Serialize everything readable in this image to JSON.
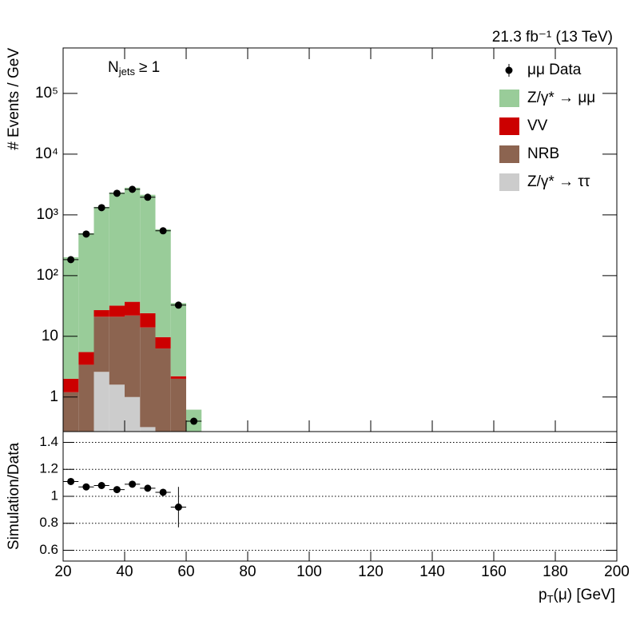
{
  "chart_data": [
    {
      "type": "histogram",
      "log_y": true,
      "lumi": "21.3 fb⁻¹ (13 TeV)",
      "annotation": [
        "N",
        "jets",
        "≥ 1"
      ],
      "ylabel": "# Events / GeV",
      "bins": [
        20,
        25,
        30,
        35,
        40,
        45,
        50,
        55,
        60,
        65
      ],
      "series": [
        {
          "name": "Z/γ* → μμ",
          "color": "#99cc99",
          "values": [
            198,
            494,
            1323,
            2298,
            2763,
            2116,
            570,
            33,
            0.62
          ]
        },
        {
          "name": "VV",
          "color": "#cc0000",
          "values": [
            0.8,
            2.1,
            6,
            11,
            15,
            10,
            3.4,
            0.2,
            0
          ]
        },
        {
          "name": "NRB",
          "color": "#8c6450",
          "values": [
            1.2,
            3.4,
            18.4,
            19.4,
            21,
            13.7,
            6.3,
            2.0,
            0
          ]
        },
        {
          "name": "Z/γ* → ττ",
          "color": "#cccccc",
          "values": [
            0,
            0,
            2.6,
            1.6,
            1.0,
            0.32,
            0,
            0,
            0
          ]
        }
      ],
      "data": {
        "name": "μμ Data",
        "color": "#000000",
        "values": [
          183,
          483,
          1313,
          2266,
          2633,
          1950,
          546,
          32.6,
          0.4
        ]
      },
      "xlim": [
        20,
        200
      ],
      "xticks": [
        20,
        40,
        60,
        80,
        100,
        120,
        140,
        160,
        180,
        200
      ],
      "ylim": [
        0.27,
        560000
      ],
      "yticks": [
        1,
        10,
        {
          "value": 100,
          "label": "10²"
        },
        {
          "value": 1000,
          "label": "10³"
        },
        {
          "value": 10000,
          "label": "10⁴"
        },
        {
          "value": 100000,
          "label": "10⁵"
        }
      ],
      "legend": "top-right"
    },
    {
      "type": "scatter",
      "ylabel": "Simulation/Data",
      "xlabel": [
        "p",
        "T",
        "(μ) [GeV]"
      ],
      "x": [
        22.5,
        27.5,
        32.5,
        37.5,
        42.5,
        47.5,
        52.5,
        57.5
      ],
      "values": [
        1.11,
        1.07,
        1.08,
        1.05,
        1.09,
        1.06,
        1.03,
        0.92
      ],
      "errors": [
        0.02,
        0.02,
        0.015,
        0.015,
        0.015,
        0.015,
        0.025,
        0.15
      ],
      "color": "#000000",
      "xlim": [
        20,
        200
      ],
      "xticks": [
        20,
        40,
        60,
        80,
        100,
        120,
        140,
        160,
        180,
        200
      ],
      "ylim": [
        0.52,
        1.48
      ],
      "yticks": [
        0.6,
        0.8,
        1,
        1.2,
        1.4
      ],
      "grid": true
    }
  ]
}
